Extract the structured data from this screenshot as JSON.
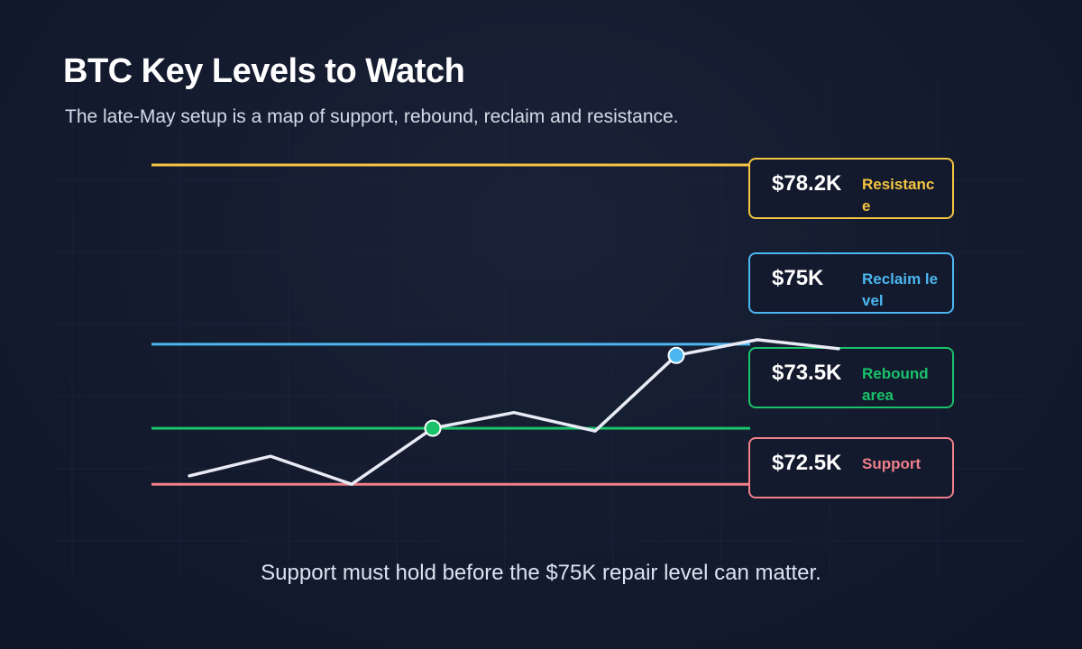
{
  "header": {
    "title": "BTC Key Levels to Watch",
    "subtitle": "The late-May setup is a map of support, rebound, reclaim and resistance."
  },
  "caption": "Support must hold before the $75K repair level can matter.",
  "colors": {
    "background": "#131a2d",
    "grid": "#1f2740",
    "price_line": "#e8ebf5",
    "resistance": "#f4c542",
    "reclaim": "#4cb6f0",
    "rebound": "#19c26b",
    "support": "#f07f8a"
  },
  "chart_data": {
    "type": "line",
    "title": "BTC Key Levels to Watch",
    "y_units": "USD",
    "ylim": [
      71200,
      79600
    ],
    "grid": true,
    "levels": [
      {
        "key": "resistance",
        "value": 78200,
        "price_label": "$78.2K",
        "label": "Resistance",
        "color": "#f4c542"
      },
      {
        "key": "reclaim",
        "value": 75000,
        "price_label": "$75K",
        "label": "Reclaim level",
        "color": "#4cb6f0"
      },
      {
        "key": "rebound",
        "value": 73500,
        "price_label": "$73.5K",
        "label": "Rebound area",
        "color": "#19c26b"
      },
      {
        "key": "support",
        "value": 72500,
        "price_label": "$72.5K",
        "label": "Support",
        "color": "#f07f8a"
      }
    ],
    "series": [
      {
        "values": [
          72650,
          73000,
          72500,
          73500,
          73780,
          73450,
          74800,
          75080,
          74920
        ]
      }
    ],
    "markers": [
      {
        "index": 3,
        "color": "#19c26b"
      },
      {
        "index": 6,
        "color": "#4cb6f0"
      }
    ]
  }
}
